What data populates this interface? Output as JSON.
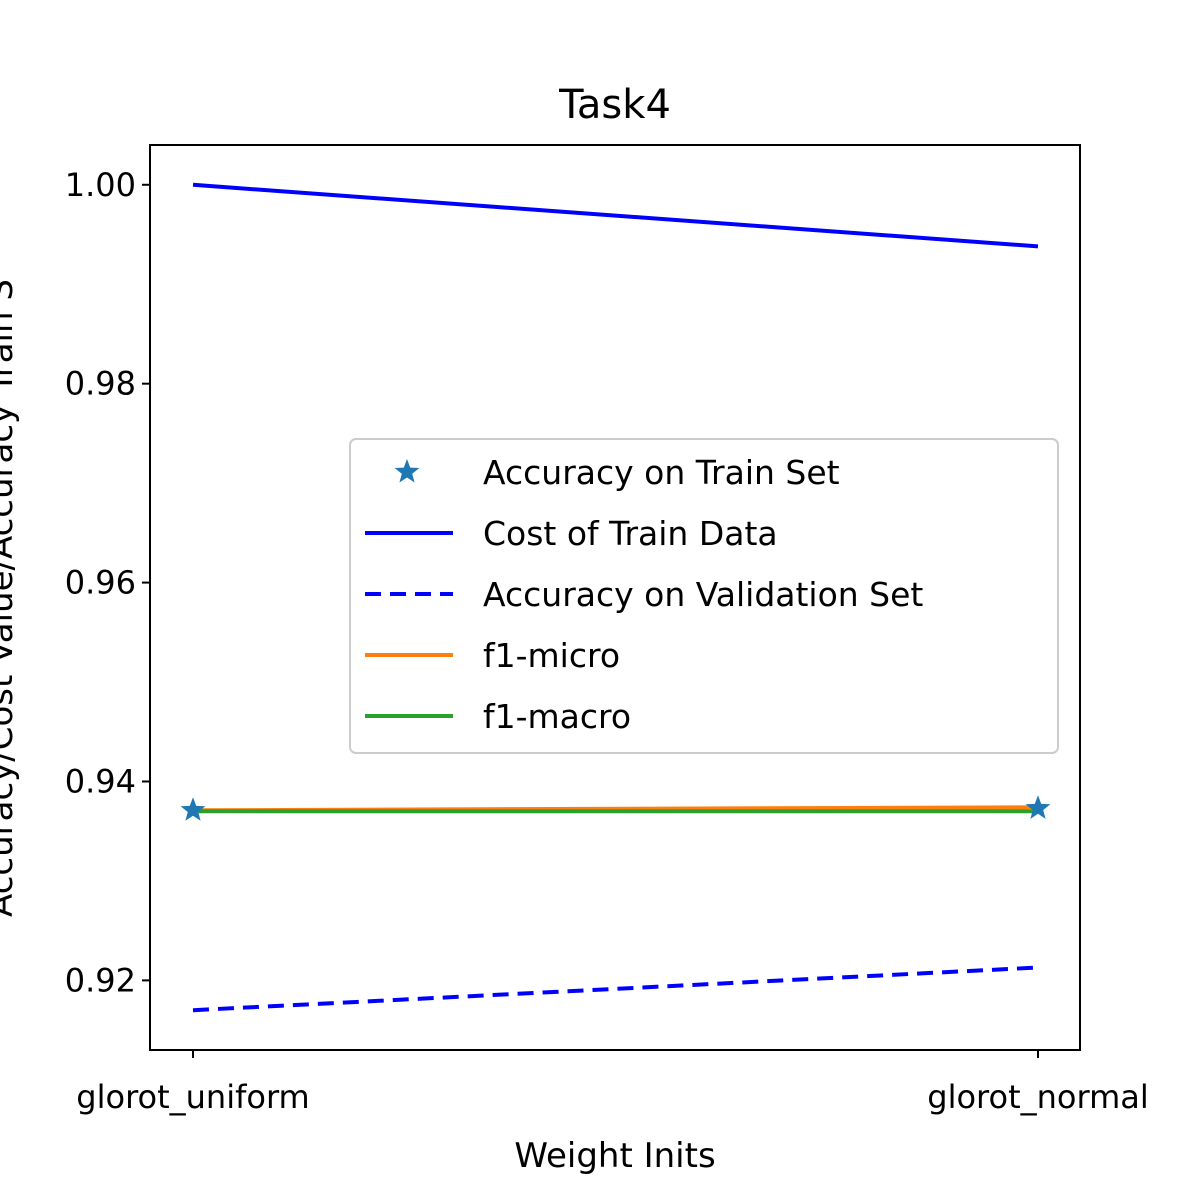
{
  "chart_data": {
    "type": "line",
    "title": "Task4",
    "xlabel": "Weight Inits",
    "ylabel": "Accuracy/Cost Value/Accuracy Train S",
    "categories": [
      "glorot_uniform",
      "glorot_normal"
    ],
    "ylim": [
      0.913,
      1.004
    ],
    "yticks": [
      0.92,
      0.94,
      0.96,
      0.98,
      1.0
    ],
    "ytick_labels": [
      "0.92",
      "0.94",
      "0.96",
      "0.98",
      "1.00"
    ],
    "grid": false,
    "legend_position": "center-right",
    "series": [
      {
        "name": "Accuracy on Train Set",
        "style": "star-markers",
        "color": "#1f77b4",
        "values": [
          0.9371,
          0.9373
        ]
      },
      {
        "name": "Cost of Train Data",
        "style": "solid",
        "color": "#0000ff",
        "values": [
          1.0,
          0.9938
        ]
      },
      {
        "name": "Accuracy on Validation Set",
        "style": "dashed",
        "color": "#0000ff",
        "values": [
          0.917,
          0.9213
        ]
      },
      {
        "name": "f1-micro",
        "style": "solid",
        "color": "#ff7f0e",
        "values": [
          0.9371,
          0.9374
        ]
      },
      {
        "name": "f1-macro",
        "style": "solid",
        "color": "#2ca02c",
        "values": [
          0.937,
          0.937
        ]
      }
    ]
  }
}
